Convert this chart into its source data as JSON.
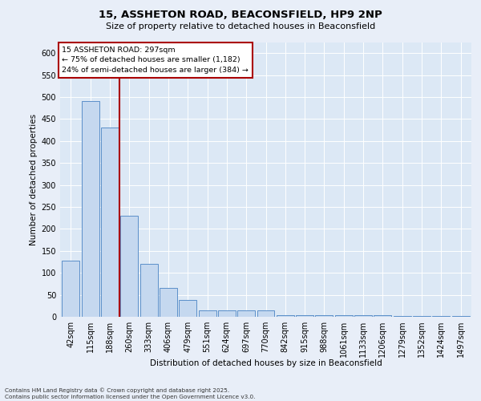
{
  "title_line1": "15, ASSHETON ROAD, BEACONSFIELD, HP9 2NP",
  "title_line2": "Size of property relative to detached houses in Beaconsfield",
  "xlabel": "Distribution of detached houses by size in Beaconsfield",
  "ylabel": "Number of detached properties",
  "categories": [
    "42sqm",
    "115sqm",
    "188sqm",
    "260sqm",
    "333sqm",
    "406sqm",
    "479sqm",
    "551sqm",
    "624sqm",
    "697sqm",
    "770sqm",
    "842sqm",
    "915sqm",
    "988sqm",
    "1061sqm",
    "1133sqm",
    "1206sqm",
    "1279sqm",
    "1352sqm",
    "1424sqm",
    "1497sqm"
  ],
  "bar_heights": [
    127,
    490,
    430,
    230,
    120,
    65,
    38,
    15,
    15,
    15,
    15,
    4,
    4,
    4,
    4,
    4,
    4,
    1,
    1,
    1,
    1
  ],
  "bar_color": "#c5d8ef",
  "bar_edge_color": "#5b8fc9",
  "background_color": "#dce8f5",
  "grid_color": "#ffffff",
  "vline_color": "#aa0000",
  "vline_pos": 2.5,
  "annotation_title": "15 ASSHETON ROAD: 297sqm",
  "annotation_line1": "← 75% of detached houses are smaller (1,182)",
  "annotation_line2": "24% of semi-detached houses are larger (384) →",
  "footer_line1": "Contains HM Land Registry data © Crown copyright and database right 2025.",
  "footer_line2": "Contains public sector information licensed under the Open Government Licence v3.0.",
  "fig_bg": "#e8eef8",
  "ylim": [
    0,
    625
  ],
  "yticks": [
    0,
    50,
    100,
    150,
    200,
    250,
    300,
    350,
    400,
    450,
    500,
    550,
    600
  ]
}
